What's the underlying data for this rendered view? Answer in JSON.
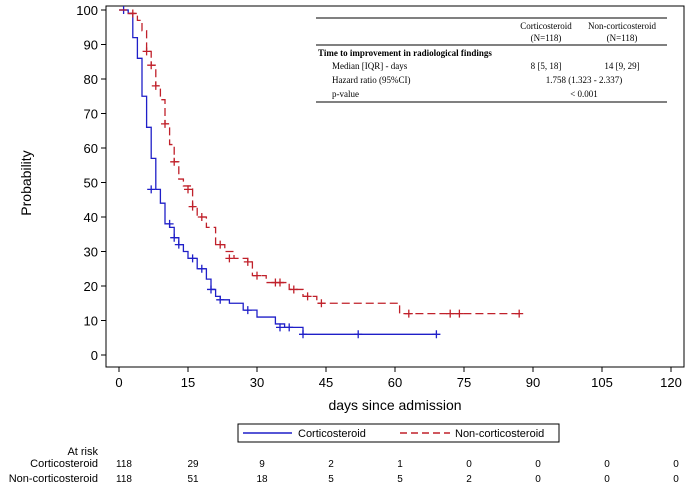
{
  "chart_data": {
    "type": "line",
    "step": true,
    "xlabel": "days since admission",
    "ylabel": "Probability",
    "xlim": [
      0,
      120
    ],
    "ylim": [
      0,
      100
    ],
    "xticks": [
      0,
      15,
      30,
      45,
      60,
      75,
      90,
      105,
      120
    ],
    "yticks": [
      0,
      10,
      20,
      30,
      40,
      50,
      60,
      70,
      80,
      90,
      100
    ],
    "grid": false,
    "legend_position": "bottom",
    "series": [
      {
        "name": "Corticosteroid",
        "color": "#1f1fc8",
        "line_style": "solid",
        "x": [
          0,
          2,
          3,
          4,
          5,
          6,
          7,
          8,
          9,
          10,
          11,
          12,
          13,
          14,
          15,
          17,
          19,
          20,
          21,
          22,
          24,
          27,
          30,
          34,
          36,
          40,
          69
        ],
        "y": [
          100,
          99,
          92,
          86,
          75,
          66,
          57,
          48,
          44,
          38,
          37,
          34,
          32,
          30,
          28,
          25,
          22,
          19,
          17,
          16,
          15,
          13,
          11,
          9,
          8,
          6,
          6
        ],
        "censored": [
          {
            "x": 1,
            "y": 100
          },
          {
            "x": 7,
            "y": 48
          },
          {
            "x": 11,
            "y": 38
          },
          {
            "x": 12,
            "y": 34
          },
          {
            "x": 13,
            "y": 32
          },
          {
            "x": 16,
            "y": 28
          },
          {
            "x": 18,
            "y": 25
          },
          {
            "x": 20,
            "y": 19
          },
          {
            "x": 22,
            "y": 16
          },
          {
            "x": 28,
            "y": 13
          },
          {
            "x": 35,
            "y": 8
          },
          {
            "x": 37,
            "y": 8
          },
          {
            "x": 40,
            "y": 6
          },
          {
            "x": 52,
            "y": 6
          },
          {
            "x": 69,
            "y": 6
          }
        ]
      },
      {
        "name": "Non-corticosteroid",
        "color": "#c0202a",
        "line_style": "dashed",
        "x": [
          0,
          2,
          4,
          5,
          6,
          7,
          8,
          9,
          10,
          11,
          12,
          13,
          14,
          16,
          17,
          19,
          21,
          23,
          25,
          28,
          29,
          32,
          37,
          40,
          43,
          61,
          87
        ],
        "y": [
          100,
          99,
          97,
          94,
          88,
          84,
          78,
          74,
          67,
          61,
          56,
          51,
          49,
          43,
          40,
          37,
          32,
          30,
          28,
          27,
          23,
          21,
          19,
          17,
          15,
          12,
          12
        ],
        "censored": [
          {
            "x": 3,
            "y": 99
          },
          {
            "x": 6,
            "y": 88
          },
          {
            "x": 7,
            "y": 84
          },
          {
            "x": 8,
            "y": 78
          },
          {
            "x": 10,
            "y": 67
          },
          {
            "x": 12,
            "y": 56
          },
          {
            "x": 15,
            "y": 48
          },
          {
            "x": 16,
            "y": 43
          },
          {
            "x": 18,
            "y": 40
          },
          {
            "x": 22,
            "y": 32
          },
          {
            "x": 24,
            "y": 28
          },
          {
            "x": 28,
            "y": 27
          },
          {
            "x": 30,
            "y": 23
          },
          {
            "x": 34,
            "y": 21
          },
          {
            "x": 35,
            "y": 21
          },
          {
            "x": 38,
            "y": 19
          },
          {
            "x": 41,
            "y": 17
          },
          {
            "x": 44,
            "y": 15
          },
          {
            "x": 63,
            "y": 12
          },
          {
            "x": 72,
            "y": 12
          },
          {
            "x": 74,
            "y": 12
          },
          {
            "x": 87,
            "y": 12
          }
        ]
      }
    ],
    "inset_table": {
      "headers": [
        "Corticosteroid\n(N=118)",
        "Non-corticosteroid\n(N=118)"
      ],
      "section_title": "Time to improvement  in radiological findings",
      "rows": [
        {
          "label": "Median [IQR]  - days",
          "values": [
            "8 [5, 18]",
            "14 [9, 29]"
          ]
        },
        {
          "label": "Hazard ratio (95%CI)",
          "values": [
            "1.758  (1.323  - 2.337)"
          ]
        },
        {
          "label": "p-value",
          "values": [
            "< 0.001"
          ]
        }
      ]
    },
    "at_risk": {
      "title": "At risk",
      "times": [
        0,
        15,
        30,
        45,
        60,
        75,
        90,
        105,
        120
      ],
      "rows": [
        {
          "name": "Corticosteroid",
          "values": [
            118,
            29,
            9,
            2,
            1,
            0,
            0,
            0,
            0
          ]
        },
        {
          "name": "Non-corticosteroid",
          "values": [
            118,
            51,
            18,
            5,
            5,
            2,
            0,
            0,
            0
          ]
        }
      ]
    }
  }
}
